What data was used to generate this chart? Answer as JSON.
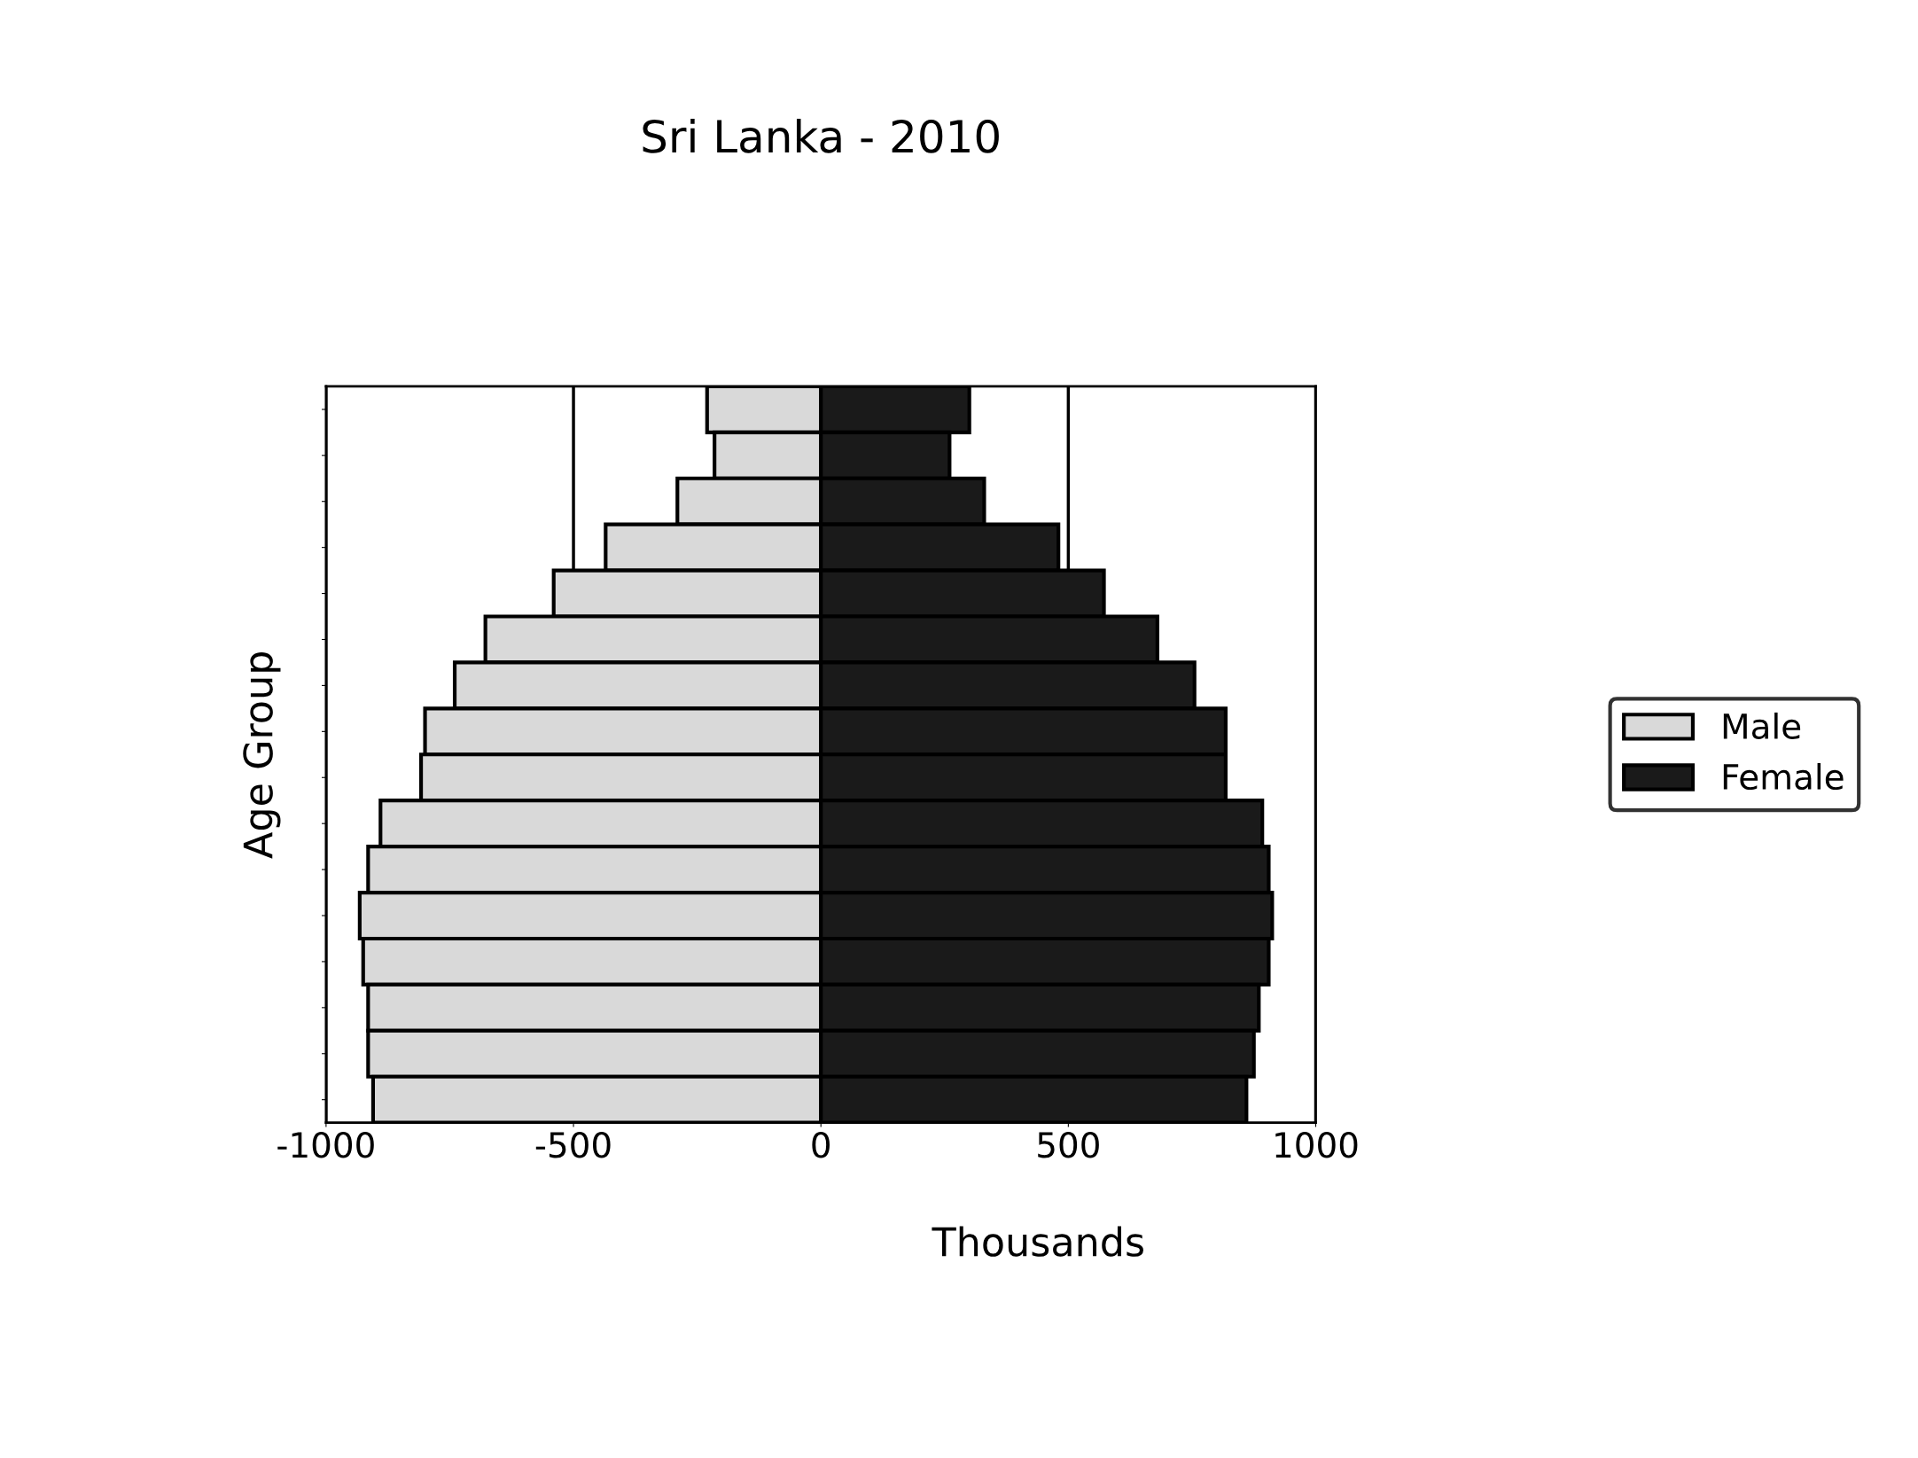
{
  "chart_data": {
    "type": "bar",
    "orientation": "horizontal",
    "stacked": true,
    "title": "Sri Lanka - 2010",
    "xlabel": "Thousands",
    "ylabel": "Age Group",
    "categories": [
      null,
      null,
      null,
      null,
      null,
      null,
      null,
      null,
      null,
      null,
      null,
      null,
      null,
      null,
      null,
      null
    ],
    "series": [
      {
        "name": "Male",
        "color": "#d9d9d9",
        "values": [
          -230,
          -215,
          -290,
          -435,
          -540,
          -678,
          -740,
          -800,
          -808,
          -890,
          -915,
          -932,
          -925,
          -915,
          -915,
          -905
        ]
      },
      {
        "name": "Female",
        "color": "#1a1a1a",
        "values": [
          300,
          260,
          330,
          480,
          572,
          680,
          755,
          818,
          818,
          892,
          905,
          912,
          905,
          885,
          875,
          860
        ]
      }
    ],
    "xlim": [
      -1000,
      1000
    ],
    "xticks": [
      -1000,
      -500,
      0,
      500,
      1000
    ],
    "grid": "x",
    "legend": "right"
  }
}
